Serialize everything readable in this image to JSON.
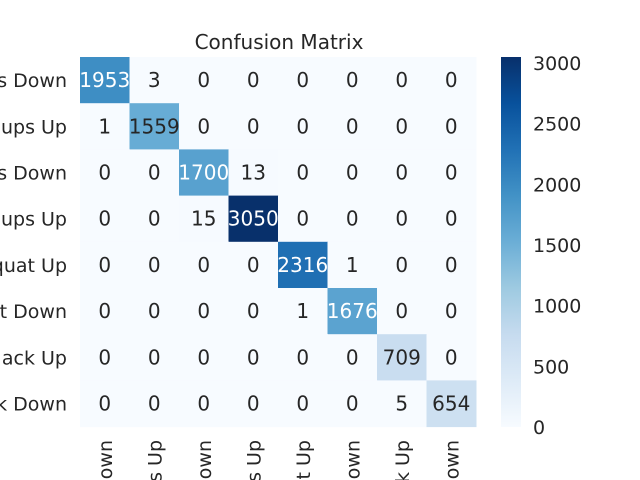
{
  "chart_data": {
    "type": "heatmap",
    "title": "Confusion Matrix",
    "xlabel": "",
    "ylabel": "",
    "row_labels": [
      "s Down",
      "ups Up",
      "s Down",
      "ups Up",
      "quat Up",
      "t Down",
      "ack Up",
      "k Down"
    ],
    "col_labels": [
      "own",
      "s Up",
      "own",
      "s Up",
      "t Up",
      "own",
      "k Up",
      "own"
    ],
    "values": [
      [
        1953,
        3,
        0,
        0,
        0,
        0,
        0,
        0
      ],
      [
        1,
        1559,
        0,
        0,
        0,
        0,
        0,
        0
      ],
      [
        0,
        0,
        1700,
        13,
        0,
        0,
        0,
        0
      ],
      [
        0,
        0,
        15,
        3050,
        0,
        0,
        0,
        0
      ],
      [
        0,
        0,
        0,
        0,
        2316,
        1,
        0,
        0
      ],
      [
        0,
        0,
        0,
        0,
        1,
        1676,
        0,
        0
      ],
      [
        0,
        0,
        0,
        0,
        0,
        0,
        709,
        0
      ],
      [
        0,
        0,
        0,
        0,
        0,
        0,
        5,
        654
      ]
    ],
    "colorbar": {
      "ticks": [
        0,
        500,
        1000,
        1500,
        2000,
        2500,
        3000
      ],
      "range": [
        0,
        3050
      ],
      "colormap": "Blues"
    },
    "grid": false
  }
}
